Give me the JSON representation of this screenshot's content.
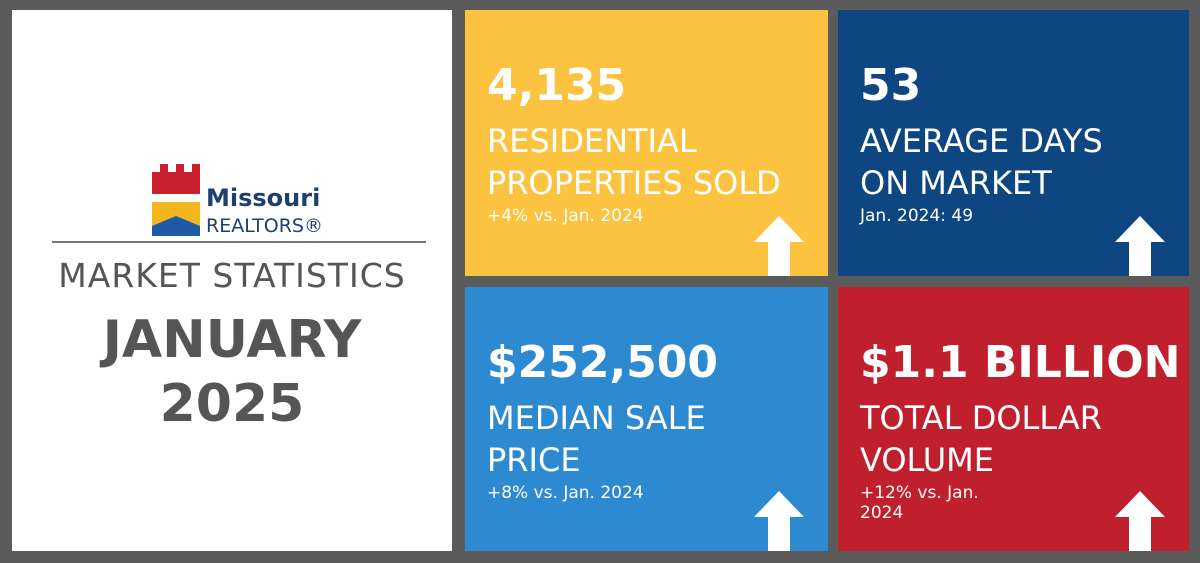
{
  "logo": {
    "name": "Missouri",
    "sub": "REALTORS®"
  },
  "heading": {
    "label": "MARKET STATISTICS",
    "month": "JANUARY",
    "year": "2025"
  },
  "tiles": [
    {
      "value": "4,135",
      "label": [
        "RESIDENTIAL",
        "PROPERTIES SOLD"
      ],
      "note": "+4% vs. Jan. 2024"
    },
    {
      "value": "53",
      "label": [
        "AVERAGE DAYS",
        "ON MARKET"
      ],
      "note": "Jan. 2024: 49"
    },
    {
      "value": "$252,500",
      "label": [
        "MEDIAN SALE",
        "PRICE"
      ],
      "note": "+8% vs. Jan. 2024"
    },
    {
      "value": "$1.1 BILLION",
      "label": [
        "TOTAL DOLLAR",
        "VOLUME"
      ],
      "note": "+12% vs. Jan. 2024"
    }
  ]
}
